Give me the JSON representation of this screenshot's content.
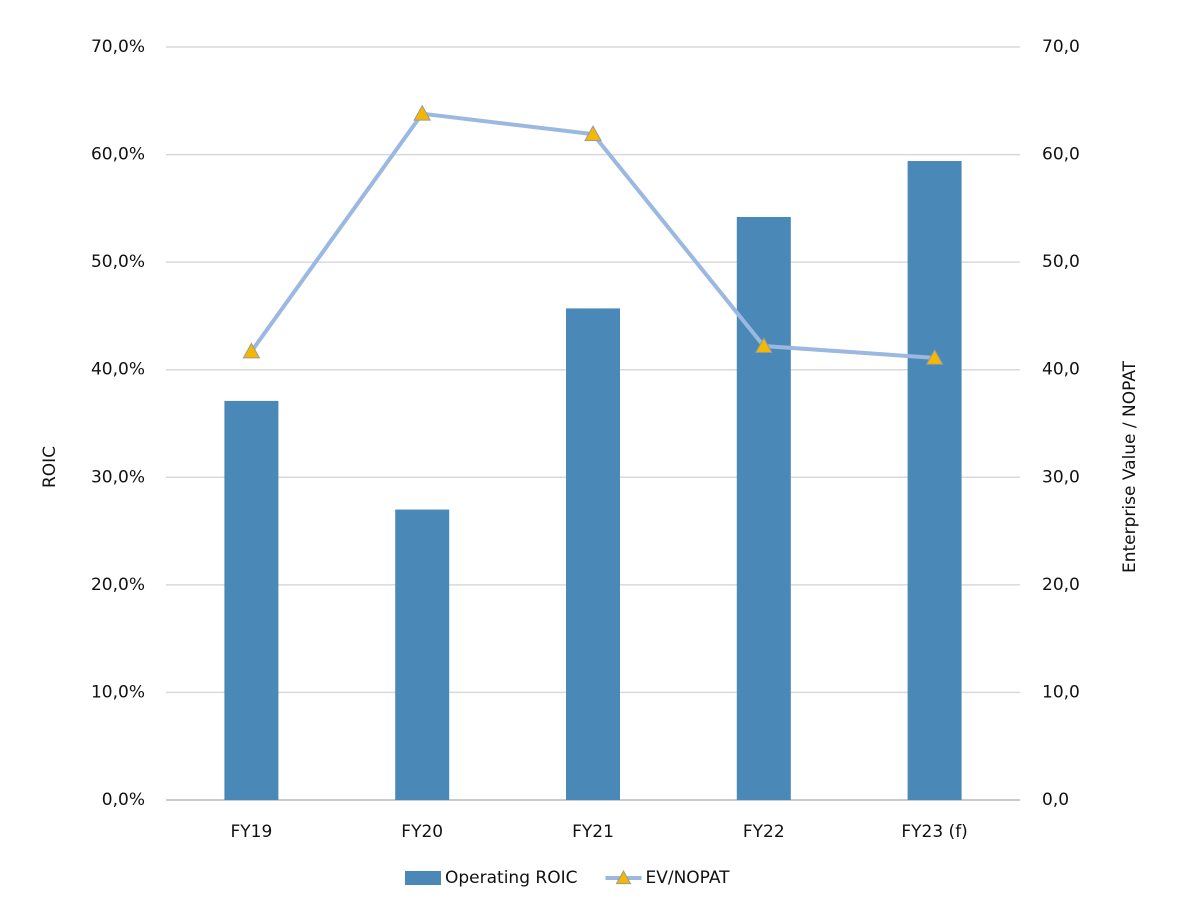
{
  "chart_data": {
    "type": "bar",
    "y_label": "ROIC",
    "y2_label": "Enterprise Value / NOPAT",
    "categories": [
      "FY19",
      "FY20",
      "FY21",
      "FY22",
      "FY23 (f)"
    ],
    "series": [
      {
        "name": "Operating ROIC",
        "type": "bar",
        "color": "#4a88b8",
        "values": [
          37.1,
          27.0,
          45.7,
          54.2,
          59.4
        ]
      },
      {
        "name": "EV/NOPAT",
        "type": "line",
        "axis": "y2",
        "color": "#9ab8e0",
        "marker": "triangle",
        "marker_color": "#f5b800",
        "values": [
          41.7,
          63.8,
          61.9,
          42.2,
          41.1
        ]
      }
    ],
    "ylim": [
      0,
      70
    ],
    "yticks": [
      {
        "value": 0,
        "label": "0,0%"
      },
      {
        "value": 10,
        "label": "10,0%"
      },
      {
        "value": 20,
        "label": "20,0%"
      },
      {
        "value": 30,
        "label": "30,0%"
      },
      {
        "value": 40,
        "label": "40,0%"
      },
      {
        "value": 50,
        "label": "50,0%"
      },
      {
        "value": 60,
        "label": "60,0%"
      },
      {
        "value": 70,
        "label": "70,0%"
      }
    ],
    "y2lim": [
      0,
      70
    ],
    "y2ticks": [
      {
        "value": 0,
        "label": "0,0"
      },
      {
        "value": 10,
        "label": "10,0"
      },
      {
        "value": 20,
        "label": "20,0"
      },
      {
        "value": 30,
        "label": "30,0"
      },
      {
        "value": 40,
        "label": "40,0"
      },
      {
        "value": 50,
        "label": "50,0"
      },
      {
        "value": 60,
        "label": "60,0"
      },
      {
        "value": 70,
        "label": "70,0"
      }
    ],
    "grid": true,
    "legend": "bottom"
  }
}
